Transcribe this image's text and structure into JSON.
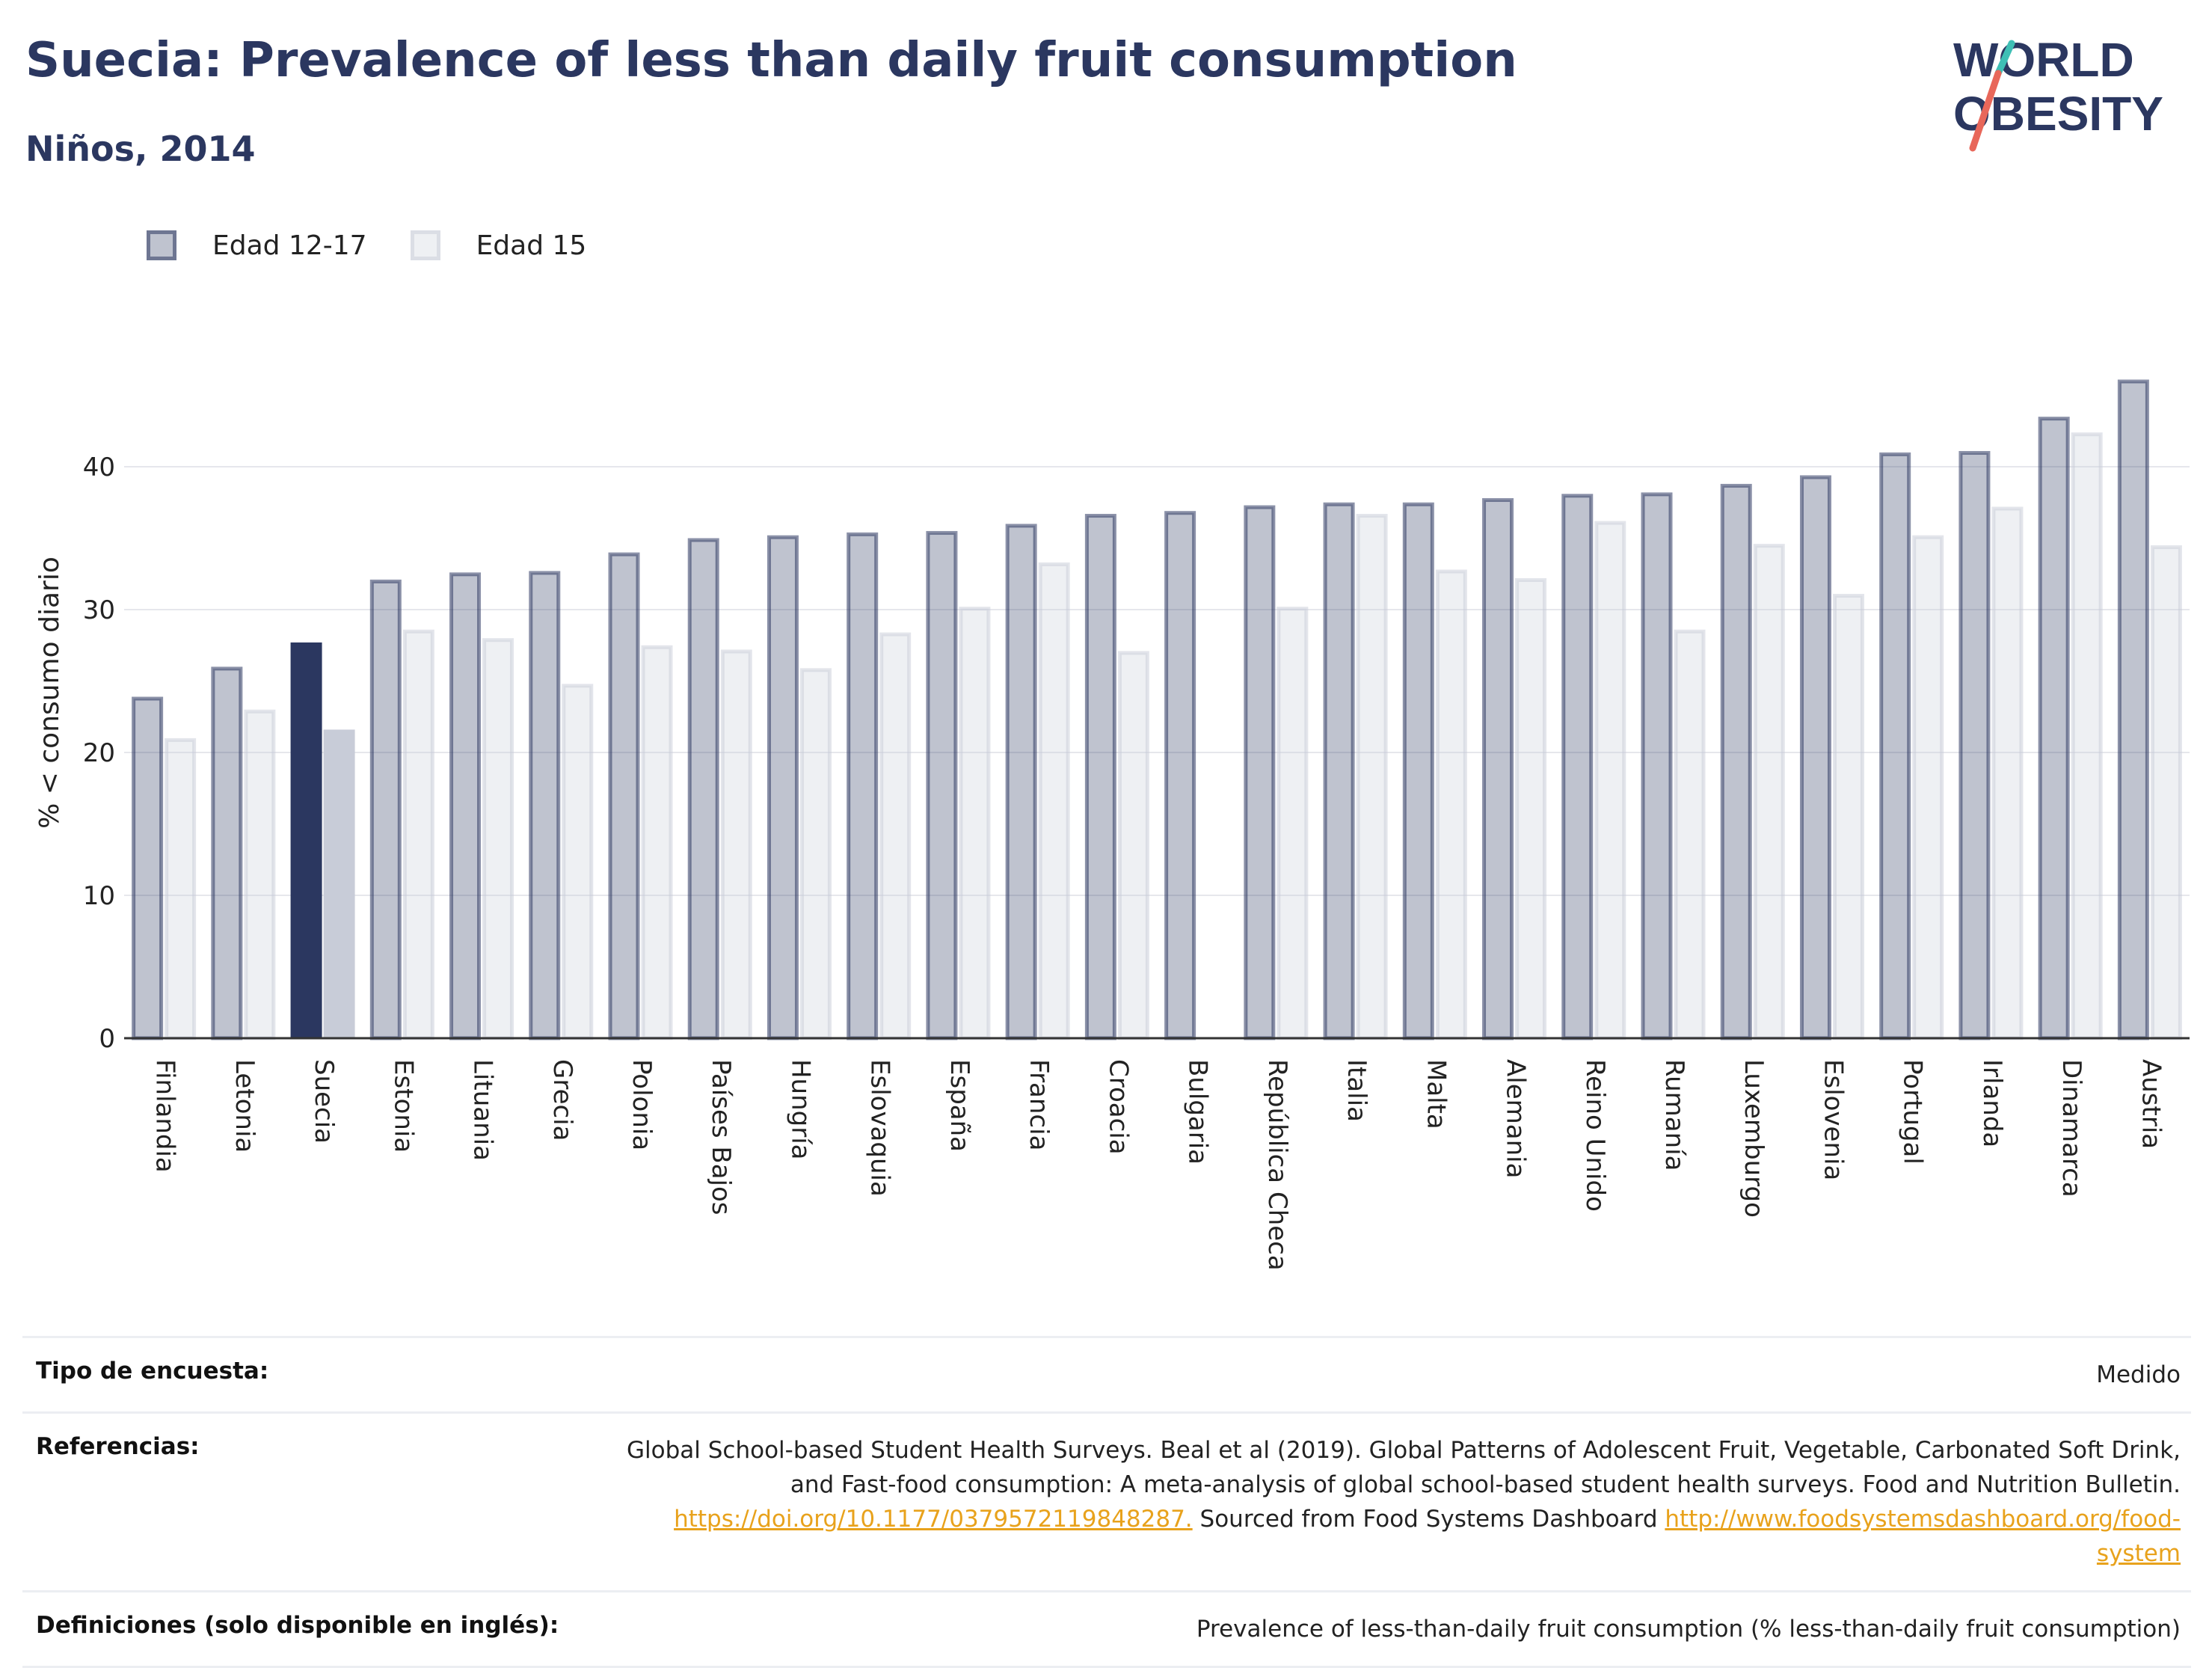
{
  "header": {
    "title": "Suecia: Prevalence of less than daily fruit consumption",
    "subtitle": "Niños, 2014"
  },
  "logo": {
    "line1": "WORLD",
    "line2": "OBESITY"
  },
  "legend": {
    "series1": "Edad 12-17",
    "series2": "Edad 15"
  },
  "colors": {
    "highlight": "#2b3760",
    "highlight_light": "#c8ccd8",
    "series1_fill": "rgba(43,55,96,0.3)",
    "series2_fill": "rgba(200,204,216,0.3)",
    "logo_accent_red": "#e8675a",
    "logo_accent_teal": "#3fbfb5"
  },
  "chart_data": {
    "type": "bar",
    "ylabel": "% < consumo diario",
    "ylim": [
      0,
      48
    ],
    "yticks": [
      0,
      10,
      20,
      30,
      40
    ],
    "grid": true,
    "legend_position": "top-left",
    "highlight": "Suecia",
    "categories": [
      "Finlandia",
      "Letonia",
      "Suecia",
      "Estonia",
      "Lituania",
      "Grecia",
      "Polonia",
      "Países Bajos",
      "Hungría",
      "Eslovaquia",
      "España",
      "Francia",
      "Croacia",
      "Bulgaria",
      "República Checa",
      "Italia",
      "Malta",
      "Alemania",
      "Reino Unido",
      "Rumanía",
      "Luxemburgo",
      "Eslovenia",
      "Portugal",
      "Irlanda",
      "Dinamarca",
      "Austria"
    ],
    "series": [
      {
        "name": "Edad 12-17",
        "values": [
          23.9,
          26.0,
          27.7,
          32.1,
          32.6,
          32.7,
          34.0,
          35.0,
          35.2,
          35.4,
          35.5,
          36.0,
          36.7,
          36.9,
          37.3,
          37.5,
          37.5,
          37.8,
          38.1,
          38.2,
          38.8,
          39.4,
          41.0,
          41.1,
          43.5,
          46.1
        ]
      },
      {
        "name": "Edad 15",
        "values": [
          21.0,
          23.0,
          21.6,
          28.6,
          28.0,
          24.8,
          27.5,
          27.2,
          25.9,
          28.4,
          30.2,
          33.3,
          27.1,
          null,
          30.2,
          36.7,
          32.8,
          32.2,
          36.2,
          28.6,
          34.6,
          31.1,
          35.2,
          37.2,
          42.4,
          34.5
        ]
      }
    ]
  },
  "info": {
    "survey_type_label": "Tipo de encuesta:",
    "survey_type_value": "Medido",
    "references_label": "Referencias:",
    "references_text1": "Global School-based Student Health Surveys. Beal et al (2019). Global Patterns of Adolescent Fruit, Vegetable, Carbonated Soft Drink,",
    "references_text2": "and Fast-food consumption: A meta-analysis of global school-based student health surveys. Food and Nutrition Bulletin.",
    "references_link1": "https://doi.org/10.1177/0379572119848287.",
    "references_text3": " Sourced from Food Systems Dashboard ",
    "references_link2a": "http://www.foodsystemsdashboard.org/food-",
    "references_link2b": "system",
    "definitions_label": "Definiciones (solo disponible en inglés):",
    "definitions_value": "Prevalence of less-than-daily fruit consumption (% less-than-daily fruit consumption)"
  }
}
